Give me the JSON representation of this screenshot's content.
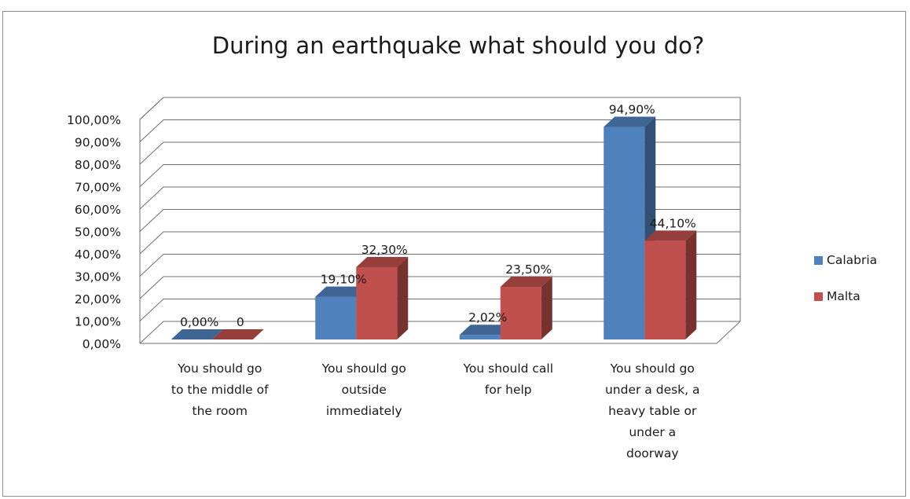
{
  "chart_data": {
    "type": "bar",
    "title": "During an earthquake what should you do?",
    "xlabel": "",
    "ylabel": "",
    "ylim": [
      0,
      100
    ],
    "yticks": [
      "0,00%",
      "10,00%",
      "20,00%",
      "30,00%",
      "40,00%",
      "50,00%",
      "60,00%",
      "70,00%",
      "80,00%",
      "90,00%",
      "100,00%"
    ],
    "categories": [
      [
        "You should go",
        "to the middle of",
        "the room"
      ],
      [
        "You should go",
        "outside",
        "immediately"
      ],
      [
        "You should call",
        "for help"
      ],
      [
        "You should go",
        "under a desk, a",
        "heavy table or",
        "under a",
        "doorway"
      ]
    ],
    "series": [
      {
        "name": "Calabria",
        "color": "#4f81bd",
        "values": [
          0,
          19.1,
          2.02,
          94.9
        ],
        "labels": [
          "0,00%",
          "19,10%",
          "2,02%",
          "94,90%"
        ]
      },
      {
        "name": "Malta",
        "color": "#c0504d",
        "values": [
          0,
          32.3,
          23.5,
          44.1
        ],
        "labels": [
          "0",
          "32,30%",
          "23,50%",
          "44,10%"
        ]
      }
    ],
    "grid": true,
    "legend_position": "right",
    "style": "3d-clustered-column"
  }
}
